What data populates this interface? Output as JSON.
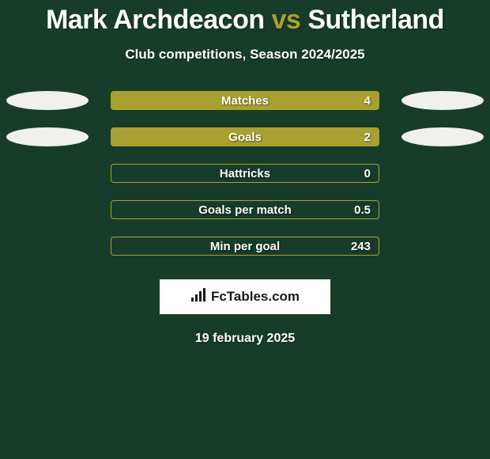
{
  "background_color": "#173d2a",
  "title": {
    "prefix": "Mark Archdeacon ",
    "prefix_color": "#ffffff",
    "vs": "vs",
    "vs_color": "#a8a131",
    "suffix": " Sutherland",
    "suffix_color": "#ffffff"
  },
  "subtitle": "Club competitions, Season 2024/2025",
  "ellipse_color": "#f0f0ed",
  "bar_fill_color": "#a8a131",
  "bar_border_color": "#a8a131",
  "stats": [
    {
      "label": "Matches",
      "value": "4",
      "left_ellipse": true,
      "right_ellipse": true,
      "filled": true
    },
    {
      "label": "Goals",
      "value": "2",
      "left_ellipse": true,
      "right_ellipse": true,
      "filled": true
    },
    {
      "label": "Hattricks",
      "value": "0",
      "left_ellipse": false,
      "right_ellipse": false,
      "filled": false
    },
    {
      "label": "Goals per match",
      "value": "0.5",
      "left_ellipse": false,
      "right_ellipse": false,
      "filled": false
    },
    {
      "label": "Min per goal",
      "value": "243",
      "left_ellipse": false,
      "right_ellipse": false,
      "filled": false
    }
  ],
  "brand": "FcTables.com",
  "brand_icon_color": "#1a1a1a",
  "date": "19 february 2025"
}
